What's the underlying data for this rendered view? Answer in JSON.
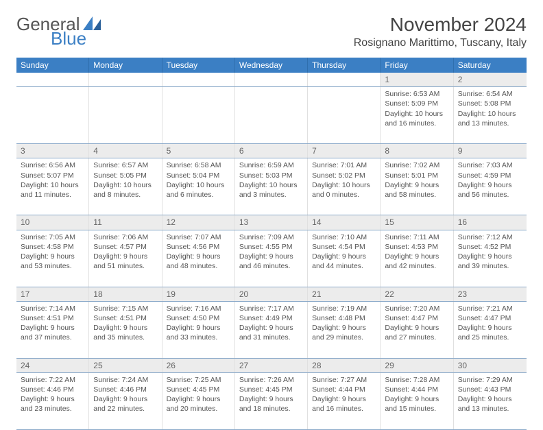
{
  "logo": {
    "text1": "General",
    "text2": "Blue"
  },
  "title": "November 2024",
  "location": "Rosignano Marittimo, Tuscany, Italy",
  "header_bg": "#3b7fc4",
  "weekdays": [
    "Sunday",
    "Monday",
    "Tuesday",
    "Wednesday",
    "Thursday",
    "Friday",
    "Saturday"
  ],
  "weeks": [
    [
      null,
      null,
      null,
      null,
      null,
      {
        "n": "1",
        "sr": "6:53 AM",
        "ss": "5:09 PM",
        "dl": "10 hours and 16 minutes."
      },
      {
        "n": "2",
        "sr": "6:54 AM",
        "ss": "5:08 PM",
        "dl": "10 hours and 13 minutes."
      }
    ],
    [
      {
        "n": "3",
        "sr": "6:56 AM",
        "ss": "5:07 PM",
        "dl": "10 hours and 11 minutes."
      },
      {
        "n": "4",
        "sr": "6:57 AM",
        "ss": "5:05 PM",
        "dl": "10 hours and 8 minutes."
      },
      {
        "n": "5",
        "sr": "6:58 AM",
        "ss": "5:04 PM",
        "dl": "10 hours and 6 minutes."
      },
      {
        "n": "6",
        "sr": "6:59 AM",
        "ss": "5:03 PM",
        "dl": "10 hours and 3 minutes."
      },
      {
        "n": "7",
        "sr": "7:01 AM",
        "ss": "5:02 PM",
        "dl": "10 hours and 0 minutes."
      },
      {
        "n": "8",
        "sr": "7:02 AM",
        "ss": "5:01 PM",
        "dl": "9 hours and 58 minutes."
      },
      {
        "n": "9",
        "sr": "7:03 AM",
        "ss": "4:59 PM",
        "dl": "9 hours and 56 minutes."
      }
    ],
    [
      {
        "n": "10",
        "sr": "7:05 AM",
        "ss": "4:58 PM",
        "dl": "9 hours and 53 minutes."
      },
      {
        "n": "11",
        "sr": "7:06 AM",
        "ss": "4:57 PM",
        "dl": "9 hours and 51 minutes."
      },
      {
        "n": "12",
        "sr": "7:07 AM",
        "ss": "4:56 PM",
        "dl": "9 hours and 48 minutes."
      },
      {
        "n": "13",
        "sr": "7:09 AM",
        "ss": "4:55 PM",
        "dl": "9 hours and 46 minutes."
      },
      {
        "n": "14",
        "sr": "7:10 AM",
        "ss": "4:54 PM",
        "dl": "9 hours and 44 minutes."
      },
      {
        "n": "15",
        "sr": "7:11 AM",
        "ss": "4:53 PM",
        "dl": "9 hours and 42 minutes."
      },
      {
        "n": "16",
        "sr": "7:12 AM",
        "ss": "4:52 PM",
        "dl": "9 hours and 39 minutes."
      }
    ],
    [
      {
        "n": "17",
        "sr": "7:14 AM",
        "ss": "4:51 PM",
        "dl": "9 hours and 37 minutes."
      },
      {
        "n": "18",
        "sr": "7:15 AM",
        "ss": "4:51 PM",
        "dl": "9 hours and 35 minutes."
      },
      {
        "n": "19",
        "sr": "7:16 AM",
        "ss": "4:50 PM",
        "dl": "9 hours and 33 minutes."
      },
      {
        "n": "20",
        "sr": "7:17 AM",
        "ss": "4:49 PM",
        "dl": "9 hours and 31 minutes."
      },
      {
        "n": "21",
        "sr": "7:19 AM",
        "ss": "4:48 PM",
        "dl": "9 hours and 29 minutes."
      },
      {
        "n": "22",
        "sr": "7:20 AM",
        "ss": "4:47 PM",
        "dl": "9 hours and 27 minutes."
      },
      {
        "n": "23",
        "sr": "7:21 AM",
        "ss": "4:47 PM",
        "dl": "9 hours and 25 minutes."
      }
    ],
    [
      {
        "n": "24",
        "sr": "7:22 AM",
        "ss": "4:46 PM",
        "dl": "9 hours and 23 minutes."
      },
      {
        "n": "25",
        "sr": "7:24 AM",
        "ss": "4:46 PM",
        "dl": "9 hours and 22 minutes."
      },
      {
        "n": "26",
        "sr": "7:25 AM",
        "ss": "4:45 PM",
        "dl": "9 hours and 20 minutes."
      },
      {
        "n": "27",
        "sr": "7:26 AM",
        "ss": "4:45 PM",
        "dl": "9 hours and 18 minutes."
      },
      {
        "n": "28",
        "sr": "7:27 AM",
        "ss": "4:44 PM",
        "dl": "9 hours and 16 minutes."
      },
      {
        "n": "29",
        "sr": "7:28 AM",
        "ss": "4:44 PM",
        "dl": "9 hours and 15 minutes."
      },
      {
        "n": "30",
        "sr": "7:29 AM",
        "ss": "4:43 PM",
        "dl": "9 hours and 13 minutes."
      }
    ]
  ],
  "labels": {
    "sunrise": "Sunrise:",
    "sunset": "Sunset:",
    "daylight": "Daylight:"
  }
}
